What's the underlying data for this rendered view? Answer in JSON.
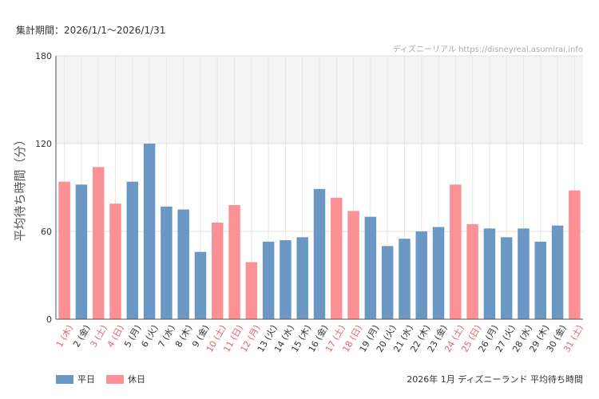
{
  "header": {
    "period_label": "集計期間：2026/1/1～2026/1/31",
    "source": "ディズニーリアル https://disneyreal.asumirai.info"
  },
  "footer": {
    "caption": "2026年 1月 ディズニーランド 平均待ち時間"
  },
  "colors": {
    "weekday": "#6a97c4",
    "holiday": "#fb9095",
    "holiday_label": "#e8616a"
  },
  "chart_data": {
    "type": "bar",
    "ylabel": "平均待ち時間（分）",
    "ylim": [
      0,
      180
    ],
    "yticks": [
      0,
      60,
      120,
      180
    ],
    "shaded_band": [
      120,
      180
    ],
    "grid": true,
    "legend": [
      {
        "key": "weekday",
        "label": "平日"
      },
      {
        "key": "holiday",
        "label": "休日"
      }
    ],
    "categories": [
      "1 (木)",
      "2 (金)",
      "3 (土)",
      "4 (日)",
      "5 (月)",
      "6 (火)",
      "7 (水)",
      "8 (木)",
      "9 (金)",
      "10 (土)",
      "11 (日)",
      "12 (月)",
      "13 (火)",
      "14 (水)",
      "15 (木)",
      "16 (金)",
      "17 (土)",
      "18 (日)",
      "19 (月)",
      "20 (火)",
      "21 (水)",
      "22 (木)",
      "23 (金)",
      "24 (土)",
      "25 (日)",
      "26 (月)",
      "27 (火)",
      "28 (水)",
      "29 (木)",
      "30 (金)",
      "31 (土)"
    ],
    "values": [
      94,
      92,
      104,
      79,
      94,
      120,
      77,
      75,
      46,
      66,
      78,
      39,
      53,
      54,
      56,
      89,
      83,
      74,
      70,
      50,
      55,
      60,
      63,
      92,
      65,
      62,
      56,
      62,
      53,
      64,
      88
    ],
    "day_type": [
      "holiday",
      "weekday",
      "holiday",
      "holiday",
      "weekday",
      "weekday",
      "weekday",
      "weekday",
      "weekday",
      "holiday",
      "holiday",
      "holiday",
      "weekday",
      "weekday",
      "weekday",
      "weekday",
      "holiday",
      "holiday",
      "weekday",
      "weekday",
      "weekday",
      "weekday",
      "weekday",
      "holiday",
      "holiday",
      "weekday",
      "weekday",
      "weekday",
      "weekday",
      "weekday",
      "holiday"
    ]
  }
}
